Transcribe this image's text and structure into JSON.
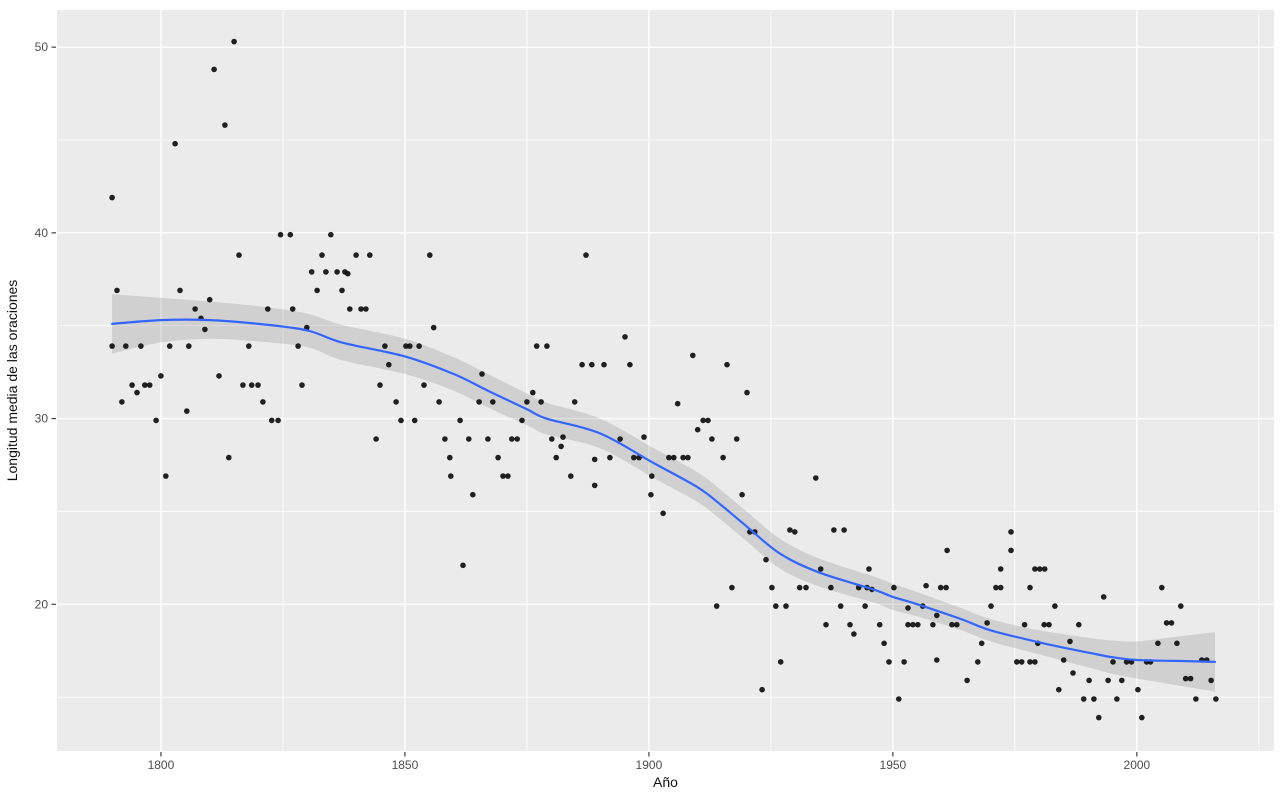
{
  "chart_data": {
    "type": "scatter",
    "title": "",
    "xlabel": "Año",
    "ylabel": "Longitud media de las oraciones",
    "legend": "none",
    "grid": "on",
    "panel_style": "ggplot-grey",
    "xlim": [
      1778.7,
      2028.1
    ],
    "ylim": [
      12.1,
      52.0
    ],
    "x_ticks": [
      1800,
      1850,
      1900,
      1950,
      2000
    ],
    "y_ticks": [
      20,
      30,
      40,
      50
    ],
    "x_minor_ticks": [
      1825,
      1875,
      1925,
      1975,
      2025
    ],
    "y_minor_ticks": [
      15,
      25,
      35,
      45
    ],
    "colors": {
      "background": "#FFFFFF",
      "panel": "#EBEBEB",
      "grid_major": "#FFFFFF",
      "grid_minor": "#FFFFFF",
      "point": "#0A0A0A",
      "smooth_line": "#3366FF",
      "ci_band": "rgba(51,51,51,0.15)",
      "axis_text": "#4D4D4D",
      "axis_title": "#111111"
    },
    "points": [
      [
        1790.0,
        41.9
      ],
      [
        1790.0,
        33.9
      ],
      [
        1791.0,
        36.9
      ],
      [
        1792.0,
        30.9
      ],
      [
        1792.8,
        33.9
      ],
      [
        1794.1,
        31.8
      ],
      [
        1795.1,
        31.4
      ],
      [
        1795.9,
        33.9
      ],
      [
        1796.7,
        31.8
      ],
      [
        1797.7,
        31.8
      ],
      [
        1799.0,
        29.9
      ],
      [
        1800.0,
        32.3
      ],
      [
        1801.0,
        26.9
      ],
      [
        1801.8,
        33.9
      ],
      [
        1802.9,
        44.8
      ],
      [
        1803.9,
        36.9
      ],
      [
        1805.3,
        30.4
      ],
      [
        1805.7,
        33.9
      ],
      [
        1807.0,
        35.9
      ],
      [
        1808.2,
        35.4
      ],
      [
        1809.0,
        34.8
      ],
      [
        1810.0,
        36.4
      ],
      [
        1810.9,
        48.8
      ],
      [
        1811.9,
        32.3
      ],
      [
        1813.1,
        45.8
      ],
      [
        1813.9,
        27.9
      ],
      [
        1815.0,
        50.3
      ],
      [
        1816.0,
        38.8
      ],
      [
        1816.8,
        31.8
      ],
      [
        1818.0,
        33.9
      ],
      [
        1818.6,
        31.8
      ],
      [
        1819.9,
        31.8
      ],
      [
        1820.9,
        30.9
      ],
      [
        1821.9,
        35.9
      ],
      [
        1822.7,
        29.9
      ],
      [
        1824.0,
        29.9
      ],
      [
        1824.5,
        39.9
      ],
      [
        1826.5,
        39.9
      ],
      [
        1827.0,
        35.9
      ],
      [
        1828.1,
        33.9
      ],
      [
        1828.9,
        31.8
      ],
      [
        1829.9,
        34.9
      ],
      [
        1830.9,
        37.9
      ],
      [
        1832.0,
        36.9
      ],
      [
        1833.0,
        38.8
      ],
      [
        1833.8,
        37.9
      ],
      [
        1834.8,
        39.9
      ],
      [
        1836.1,
        37.9
      ],
      [
        1837.1,
        36.9
      ],
      [
        1837.7,
        37.9
      ],
      [
        1838.3,
        37.8
      ],
      [
        1838.7,
        35.9
      ],
      [
        1840.0,
        38.8
      ],
      [
        1841.0,
        35.9
      ],
      [
        1842.0,
        35.9
      ],
      [
        1842.8,
        38.8
      ],
      [
        1844.1,
        28.9
      ],
      [
        1844.9,
        31.8
      ],
      [
        1845.9,
        33.9
      ],
      [
        1846.7,
        32.9
      ],
      [
        1848.2,
        30.9
      ],
      [
        1849.2,
        29.9
      ],
      [
        1850.2,
        33.9
      ],
      [
        1851.0,
        33.9
      ],
      [
        1852.0,
        29.9
      ],
      [
        1852.9,
        33.9
      ],
      [
        1853.9,
        31.8
      ],
      [
        1855.1,
        38.8
      ],
      [
        1855.9,
        34.9
      ],
      [
        1857.0,
        30.9
      ],
      [
        1858.2,
        28.9
      ],
      [
        1859.2,
        27.9
      ],
      [
        1859.4,
        26.9
      ],
      [
        1861.3,
        29.9
      ],
      [
        1861.9,
        22.1
      ],
      [
        1863.1,
        28.9
      ],
      [
        1863.9,
        25.9
      ],
      [
        1865.2,
        30.9
      ],
      [
        1865.8,
        32.4
      ],
      [
        1867.0,
        28.9
      ],
      [
        1868.0,
        30.9
      ],
      [
        1869.1,
        27.9
      ],
      [
        1870.1,
        26.9
      ],
      [
        1871.1,
        26.9
      ],
      [
        1871.9,
        28.9
      ],
      [
        1873.0,
        28.9
      ],
      [
        1874.0,
        29.9
      ],
      [
        1875.0,
        30.9
      ],
      [
        1876.2,
        31.4
      ],
      [
        1877.0,
        33.9
      ],
      [
        1877.9,
        30.9
      ],
      [
        1879.1,
        33.9
      ],
      [
        1880.1,
        28.9
      ],
      [
        1881.0,
        27.9
      ],
      [
        1882.0,
        28.5
      ],
      [
        1882.4,
        29.0
      ],
      [
        1884.0,
        26.9
      ],
      [
        1884.8,
        30.9
      ],
      [
        1886.3,
        32.9
      ],
      [
        1887.1,
        38.8
      ],
      [
        1888.3,
        32.9
      ],
      [
        1888.9,
        26.4
      ],
      [
        1888.9,
        27.8
      ],
      [
        1890.8,
        32.9
      ],
      [
        1892.0,
        27.9
      ],
      [
        1894.1,
        28.9
      ],
      [
        1895.1,
        34.4
      ],
      [
        1896.1,
        32.9
      ],
      [
        1896.9,
        27.9
      ],
      [
        1898.0,
        27.9
      ],
      [
        1899.0,
        29.0
      ],
      [
        1900.4,
        25.9
      ],
      [
        1900.6,
        26.9
      ],
      [
        1902.9,
        24.9
      ],
      [
        1904.1,
        27.9
      ],
      [
        1905.1,
        27.9
      ],
      [
        1905.9,
        30.8
      ],
      [
        1907.0,
        27.9
      ],
      [
        1908.0,
        27.9
      ],
      [
        1909.0,
        33.4
      ],
      [
        1910.0,
        29.4
      ],
      [
        1911.1,
        29.9
      ],
      [
        1912.1,
        29.9
      ],
      [
        1912.9,
        28.9
      ],
      [
        1913.9,
        19.9
      ],
      [
        1915.2,
        27.9
      ],
      [
        1916.0,
        32.9
      ],
      [
        1917.0,
        20.9
      ],
      [
        1918.0,
        28.9
      ],
      [
        1919.1,
        25.9
      ],
      [
        1920.1,
        31.4
      ],
      [
        1920.7,
        23.9
      ],
      [
        1921.7,
        23.9
      ],
      [
        1923.2,
        15.4
      ],
      [
        1924.0,
        22.4
      ],
      [
        1925.2,
        20.9
      ],
      [
        1926.0,
        19.9
      ],
      [
        1927.0,
        16.9
      ],
      [
        1928.1,
        19.9
      ],
      [
        1928.9,
        24.0
      ],
      [
        1929.9,
        23.9
      ],
      [
        1930.9,
        20.9
      ],
      [
        1932.2,
        20.9
      ],
      [
        1934.2,
        26.8
      ],
      [
        1935.2,
        21.9
      ],
      [
        1936.3,
        18.9
      ],
      [
        1937.3,
        20.9
      ],
      [
        1937.9,
        24.0
      ],
      [
        1939.3,
        19.9
      ],
      [
        1940.0,
        24.0
      ],
      [
        1941.2,
        18.9
      ],
      [
        1942.0,
        18.4
      ],
      [
        1943.0,
        20.9
      ],
      [
        1944.3,
        19.9
      ],
      [
        1944.7,
        20.9
      ],
      [
        1945.1,
        21.9
      ],
      [
        1945.7,
        20.8
      ],
      [
        1947.3,
        18.9
      ],
      [
        1948.2,
        17.9
      ],
      [
        1949.2,
        16.9
      ],
      [
        1950.2,
        20.9
      ],
      [
        1951.2,
        14.9
      ],
      [
        1952.3,
        16.9
      ],
      [
        1953.1,
        19.8
      ],
      [
        1953.1,
        18.9
      ],
      [
        1954.1,
        18.9
      ],
      [
        1955.1,
        18.9
      ],
      [
        1956.1,
        19.9
      ],
      [
        1956.8,
        21.0
      ],
      [
        1958.2,
        18.9
      ],
      [
        1959.0,
        19.4
      ],
      [
        1959.0,
        17.0
      ],
      [
        1959.8,
        20.9
      ],
      [
        1960.9,
        20.9
      ],
      [
        1961.1,
        22.9
      ],
      [
        1962.1,
        18.9
      ],
      [
        1963.1,
        18.9
      ],
      [
        1965.2,
        15.9
      ],
      [
        1967.4,
        16.9
      ],
      [
        1968.2,
        17.9
      ],
      [
        1969.3,
        19.0
      ],
      [
        1970.1,
        19.9
      ],
      [
        1971.1,
        20.9
      ],
      [
        1972.1,
        20.9
      ],
      [
        1972.1,
        21.9
      ],
      [
        1974.2,
        23.9
      ],
      [
        1974.2,
        22.9
      ],
      [
        1975.4,
        16.9
      ],
      [
        1976.4,
        16.9
      ],
      [
        1977.0,
        18.9
      ],
      [
        1978.1,
        20.9
      ],
      [
        1978.1,
        16.9
      ],
      [
        1979.1,
        21.9
      ],
      [
        1979.1,
        16.9
      ],
      [
        1979.7,
        17.9
      ],
      [
        1980.1,
        21.9
      ],
      [
        1981.0,
        18.9
      ],
      [
        1981.1,
        21.9
      ],
      [
        1982.0,
        18.9
      ],
      [
        1983.2,
        19.9
      ],
      [
        1984.0,
        15.4
      ],
      [
        1985.0,
        17.0
      ],
      [
        1986.3,
        18.0
      ],
      [
        1986.9,
        16.3
      ],
      [
        1988.1,
        18.9
      ],
      [
        1989.1,
        14.9
      ],
      [
        1990.2,
        15.9
      ],
      [
        1991.2,
        14.9
      ],
      [
        1992.2,
        13.9
      ],
      [
        1993.2,
        20.4
      ],
      [
        1994.1,
        15.9
      ],
      [
        1995.1,
        16.9
      ],
      [
        1995.9,
        14.9
      ],
      [
        1996.9,
        15.9
      ],
      [
        1997.9,
        16.9
      ],
      [
        1998.9,
        16.9
      ],
      [
        2000.2,
        15.4
      ],
      [
        2001.0,
        13.9
      ],
      [
        2002.0,
        16.9
      ],
      [
        2002.8,
        16.9
      ],
      [
        2004.3,
        17.9
      ],
      [
        2005.1,
        20.9
      ],
      [
        2006.1,
        19.0
      ],
      [
        2007.1,
        19.0
      ],
      [
        2008.2,
        17.9
      ],
      [
        2009.0,
        19.9
      ],
      [
        2010.0,
        16.0
      ],
      [
        2011.0,
        16.0
      ],
      [
        2012.1,
        14.9
      ],
      [
        2013.3,
        17.0
      ],
      [
        2014.3,
        17.0
      ],
      [
        2015.2,
        15.9
      ],
      [
        2016.2,
        14.9
      ]
    ],
    "smooth_line": [
      [
        1790,
        35.1
      ],
      [
        1800,
        35.3
      ],
      [
        1810,
        35.3
      ],
      [
        1820,
        35.1
      ],
      [
        1830,
        34.75
      ],
      [
        1837,
        34.1
      ],
      [
        1850,
        33.35
      ],
      [
        1860,
        32.4
      ],
      [
        1867,
        31.5
      ],
      [
        1875,
        30.5
      ],
      [
        1879,
        30.0
      ],
      [
        1890,
        29.2
      ],
      [
        1901,
        27.6
      ],
      [
        1910,
        26.3
      ],
      [
        1915,
        25.3
      ],
      [
        1920,
        24.2
      ],
      [
        1927,
        22.7
      ],
      [
        1935,
        21.7
      ],
      [
        1946,
        20.8
      ],
      [
        1950,
        20.4
      ],
      [
        1955,
        20.0
      ],
      [
        1964,
        19.2
      ],
      [
        1970,
        18.6
      ],
      [
        1980,
        17.95
      ],
      [
        1990,
        17.4
      ],
      [
        1995,
        17.15
      ],
      [
        2000,
        17.0
      ],
      [
        2008,
        16.95
      ],
      [
        2016,
        16.9
      ]
    ],
    "ci_band": [
      [
        1790,
        33.5,
        36.7
      ],
      [
        1800,
        34.1,
        36.5
      ],
      [
        1810,
        34.3,
        36.3
      ],
      [
        1820,
        34.15,
        36.05
      ],
      [
        1830,
        33.85,
        35.65
      ],
      [
        1837,
        33.15,
        35.05
      ],
      [
        1850,
        32.4,
        34.3
      ],
      [
        1860,
        31.5,
        33.3
      ],
      [
        1867,
        30.6,
        32.4
      ],
      [
        1875,
        29.65,
        31.35
      ],
      [
        1879,
        29.15,
        30.85
      ],
      [
        1890,
        28.4,
        30.0
      ],
      [
        1901,
        26.8,
        28.4
      ],
      [
        1910,
        25.5,
        27.1
      ],
      [
        1915,
        24.5,
        26.1
      ],
      [
        1920,
        23.4,
        25.0
      ],
      [
        1927,
        21.9,
        23.5
      ],
      [
        1935,
        20.95,
        22.45
      ],
      [
        1946,
        20.1,
        21.5
      ],
      [
        1950,
        19.7,
        21.1
      ],
      [
        1955,
        19.35,
        20.65
      ],
      [
        1964,
        18.6,
        19.8
      ],
      [
        1970,
        18.0,
        19.2
      ],
      [
        1980,
        17.3,
        18.6
      ],
      [
        1990,
        16.6,
        18.2
      ],
      [
        1995,
        16.25,
        18.05
      ],
      [
        2000,
        16.0,
        18.0
      ],
      [
        2008,
        15.65,
        18.25
      ],
      [
        2016,
        15.3,
        18.5
      ]
    ]
  }
}
